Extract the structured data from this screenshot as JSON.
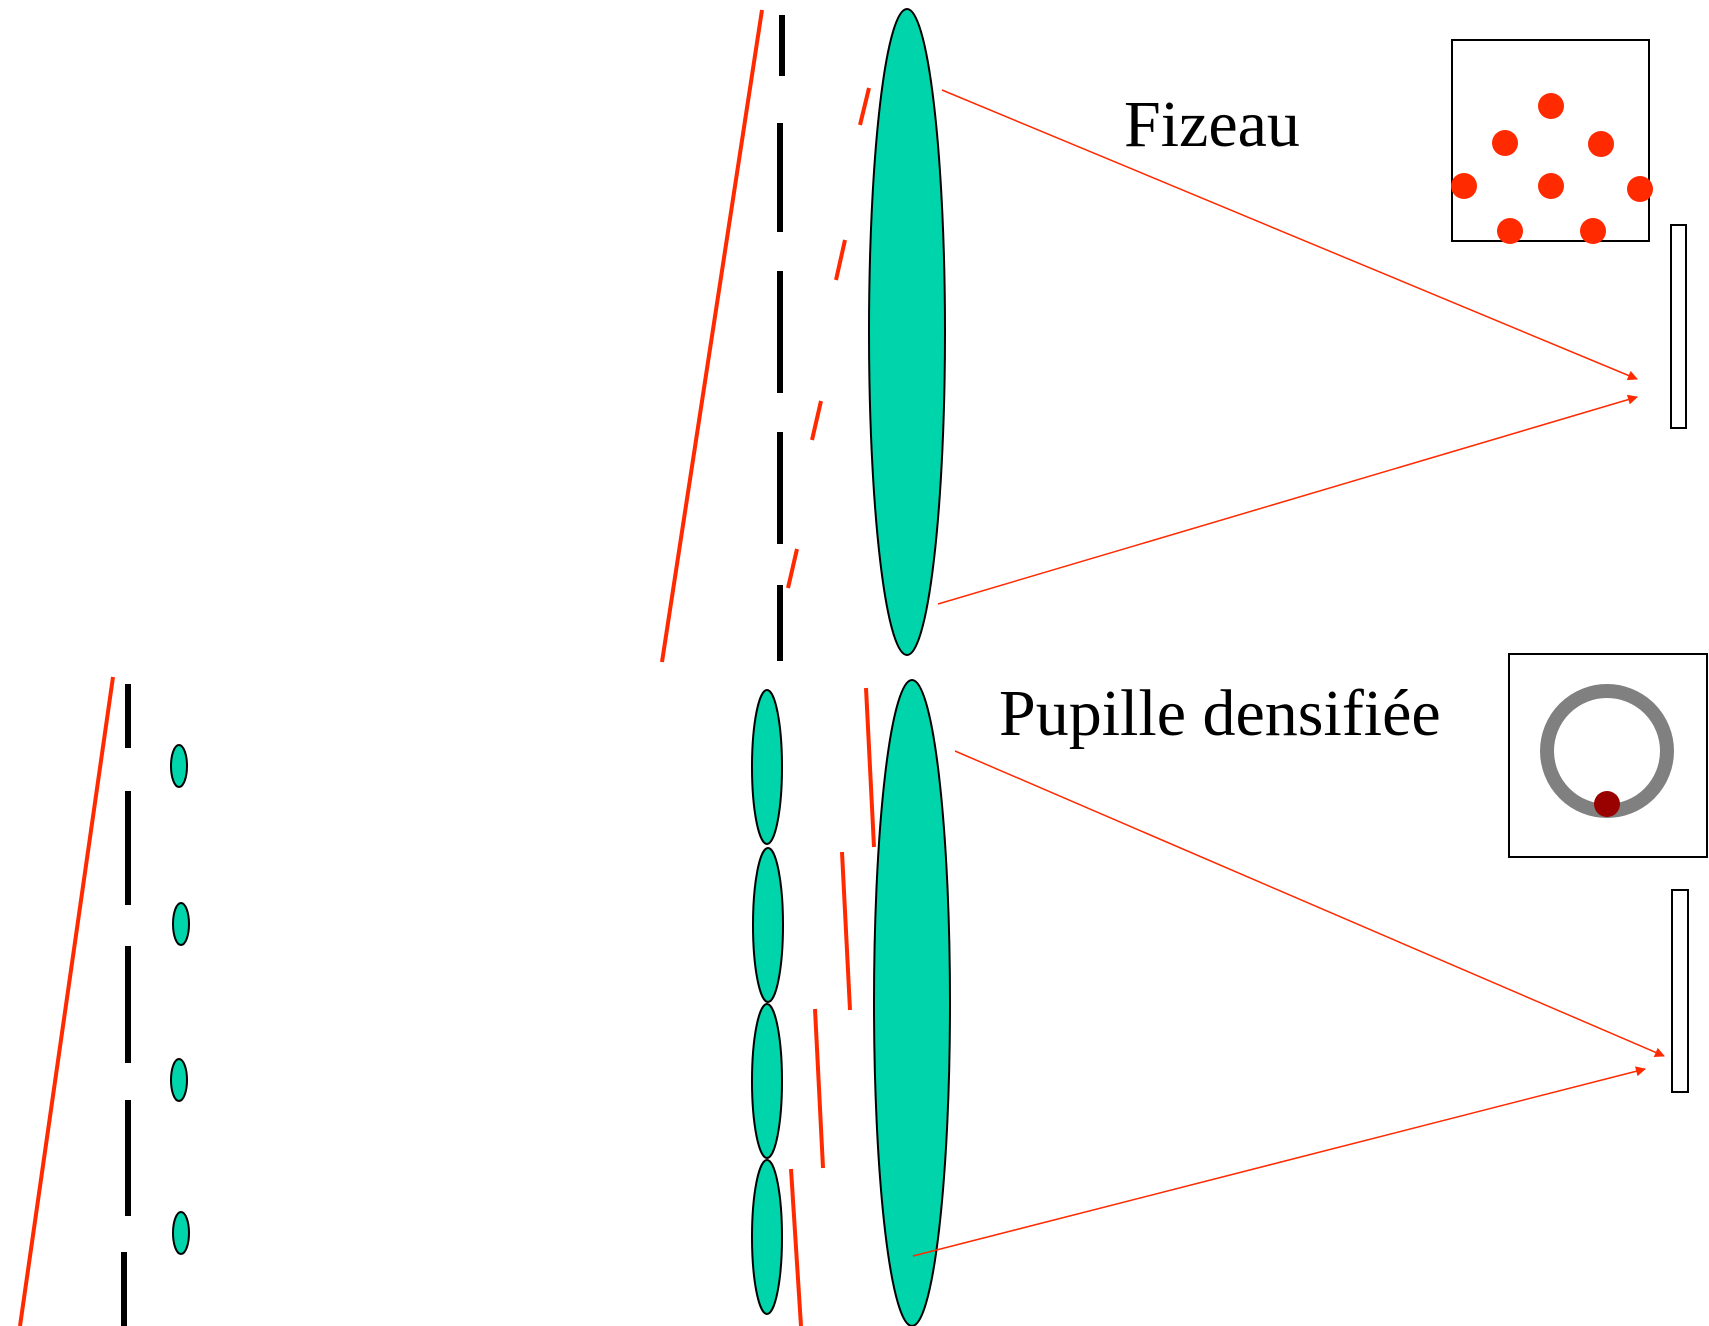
{
  "labels": {
    "fizeau": "Fizeau",
    "densified": "Pupille densifiée"
  },
  "colors": {
    "lens_fill": "#00d4aa",
    "ray_red": "#ff2a00",
    "mask_black": "#000000",
    "ring_gray": "#808080",
    "spot_dark_red": "#990000"
  },
  "icons": {
    "lens": "lens-icon",
    "detector": "detector-icon",
    "spot": "spot-icon"
  }
}
